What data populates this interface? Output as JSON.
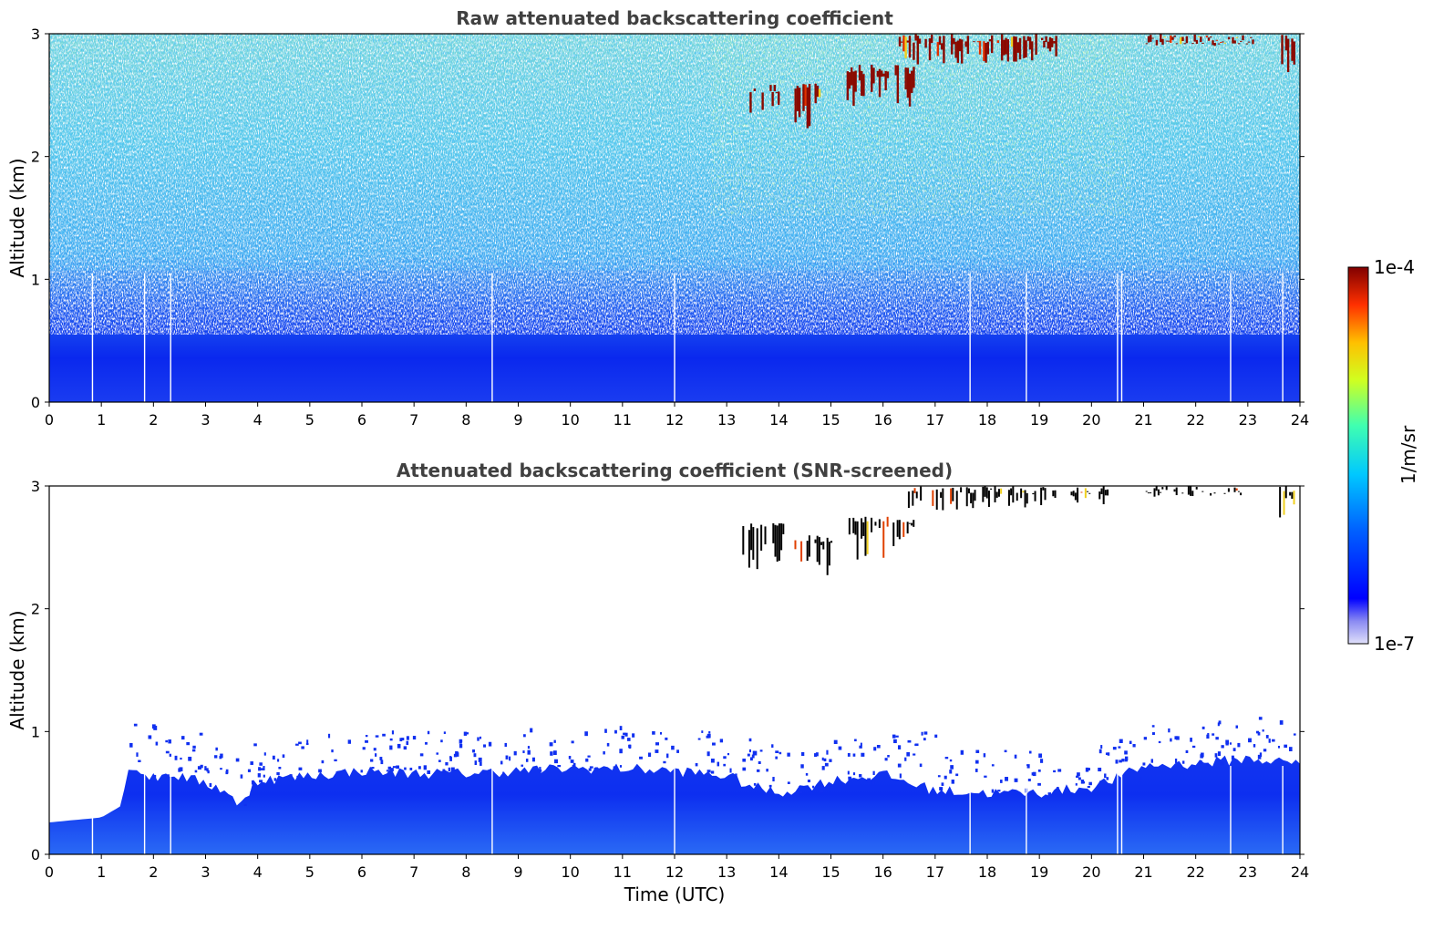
{
  "chart_data": [
    {
      "type": "heatmap",
      "title": "Raw attenuated backscattering coefficient",
      "xlabel": "",
      "ylabel": "Altitude (km)",
      "xlim": [
        0,
        24
      ],
      "ylim": [
        0,
        3
      ],
      "x_ticks": [
        "0",
        "1",
        "2",
        "3",
        "4",
        "5",
        "6",
        "7",
        "8",
        "9",
        "10",
        "11",
        "12",
        "13",
        "14",
        "15",
        "16",
        "17",
        "18",
        "19",
        "20",
        "21",
        "22",
        "23",
        "24"
      ],
      "y_ticks": [
        "0",
        "1",
        "2",
        "3"
      ],
      "data_gaps_utc": [
        0.83,
        1.83,
        2.33,
        8.5,
        12.0,
        17.67,
        18.75,
        20.5,
        20.58,
        22.67,
        23.67
      ],
      "features": {
        "boundary_layer_top_km": 0.5,
        "noise_dominated_above_km": 1.0,
        "cloud_segments": [
          {
            "t_start": 13.4,
            "t_end": 14.0,
            "alt_low_km": 2.35,
            "alt_high_km": 2.6
          },
          {
            "t_start": 14.3,
            "t_end": 14.8,
            "alt_low_km": 2.2,
            "alt_high_km": 2.6
          },
          {
            "t_start": 15.3,
            "t_end": 16.6,
            "alt_low_km": 2.4,
            "alt_high_km": 2.75
          },
          {
            "t_start": 16.3,
            "t_end": 19.4,
            "alt_low_km": 2.75,
            "alt_high_km": 3.0
          },
          {
            "t_start": 21.0,
            "t_end": 23.1,
            "alt_low_km": 2.9,
            "alt_high_km": 3.0
          },
          {
            "t_start": 23.6,
            "t_end": 23.9,
            "alt_low_km": 2.65,
            "alt_high_km": 3.0
          }
        ]
      }
    },
    {
      "type": "heatmap",
      "title": "Attenuated backscattering coefficient (SNR-screened)",
      "xlabel": "Time (UTC)",
      "ylabel": "Altitude (km)",
      "xlim": [
        0,
        24
      ],
      "ylim": [
        0,
        3
      ],
      "x_ticks": [
        "0",
        "1",
        "2",
        "3",
        "4",
        "5",
        "6",
        "7",
        "8",
        "9",
        "10",
        "11",
        "12",
        "13",
        "14",
        "15",
        "16",
        "17",
        "18",
        "19",
        "20",
        "21",
        "22",
        "23",
        "24"
      ],
      "y_ticks": [
        "0",
        "1",
        "2",
        "3"
      ],
      "data_gaps_utc": [
        0.83,
        1.83,
        2.33,
        8.5,
        12.0,
        17.67,
        18.75,
        20.5,
        20.58,
        22.67,
        23.67
      ],
      "boundary_layer_profile": {
        "time_utc": [
          0,
          0.5,
          1.0,
          1.4,
          1.5,
          2.0,
          2.3,
          3.0,
          3.5,
          3.6,
          3.8,
          3.9,
          5.0,
          6.0,
          7.0,
          8.0,
          9.0,
          10.0,
          11.0,
          12.0,
          13.0,
          13.5,
          14.0,
          15.0,
          16.0,
          17.0,
          18.0,
          19.0,
          20.0,
          20.5,
          21.0,
          22.0,
          23.0,
          24.0
        ],
        "top_km": [
          0.26,
          0.28,
          0.3,
          0.4,
          0.72,
          0.62,
          0.66,
          0.58,
          0.5,
          0.38,
          0.45,
          0.6,
          0.64,
          0.68,
          0.66,
          0.66,
          0.68,
          0.7,
          0.7,
          0.68,
          0.64,
          0.55,
          0.5,
          0.6,
          0.65,
          0.52,
          0.5,
          0.5,
          0.55,
          0.62,
          0.72,
          0.74,
          0.78,
          0.74
        ]
      },
      "cloud_segments": [
        {
          "t_start": 13.3,
          "t_end": 14.1,
          "alt_low_km": 2.3,
          "alt_high_km": 2.7
        },
        {
          "t_start": 14.3,
          "t_end": 15.0,
          "alt_low_km": 2.2,
          "alt_high_km": 2.6
        },
        {
          "t_start": 15.3,
          "t_end": 16.6,
          "alt_low_km": 2.4,
          "alt_high_km": 2.75
        },
        {
          "t_start": 16.4,
          "t_end": 19.3,
          "alt_low_km": 2.8,
          "alt_high_km": 3.0
        },
        {
          "t_start": 19.6,
          "t_end": 20.3,
          "alt_low_km": 2.85,
          "alt_high_km": 3.0
        },
        {
          "t_start": 21.0,
          "t_end": 22.9,
          "alt_low_km": 2.9,
          "alt_high_km": 3.0
        },
        {
          "t_start": 23.6,
          "t_end": 23.9,
          "alt_low_km": 2.7,
          "alt_high_km": 3.0
        }
      ]
    }
  ],
  "colorbar": {
    "label": "1/m/sr",
    "max_label": "1e-4",
    "min_label": "1e-7",
    "colormap": "jet",
    "scale": "log"
  }
}
